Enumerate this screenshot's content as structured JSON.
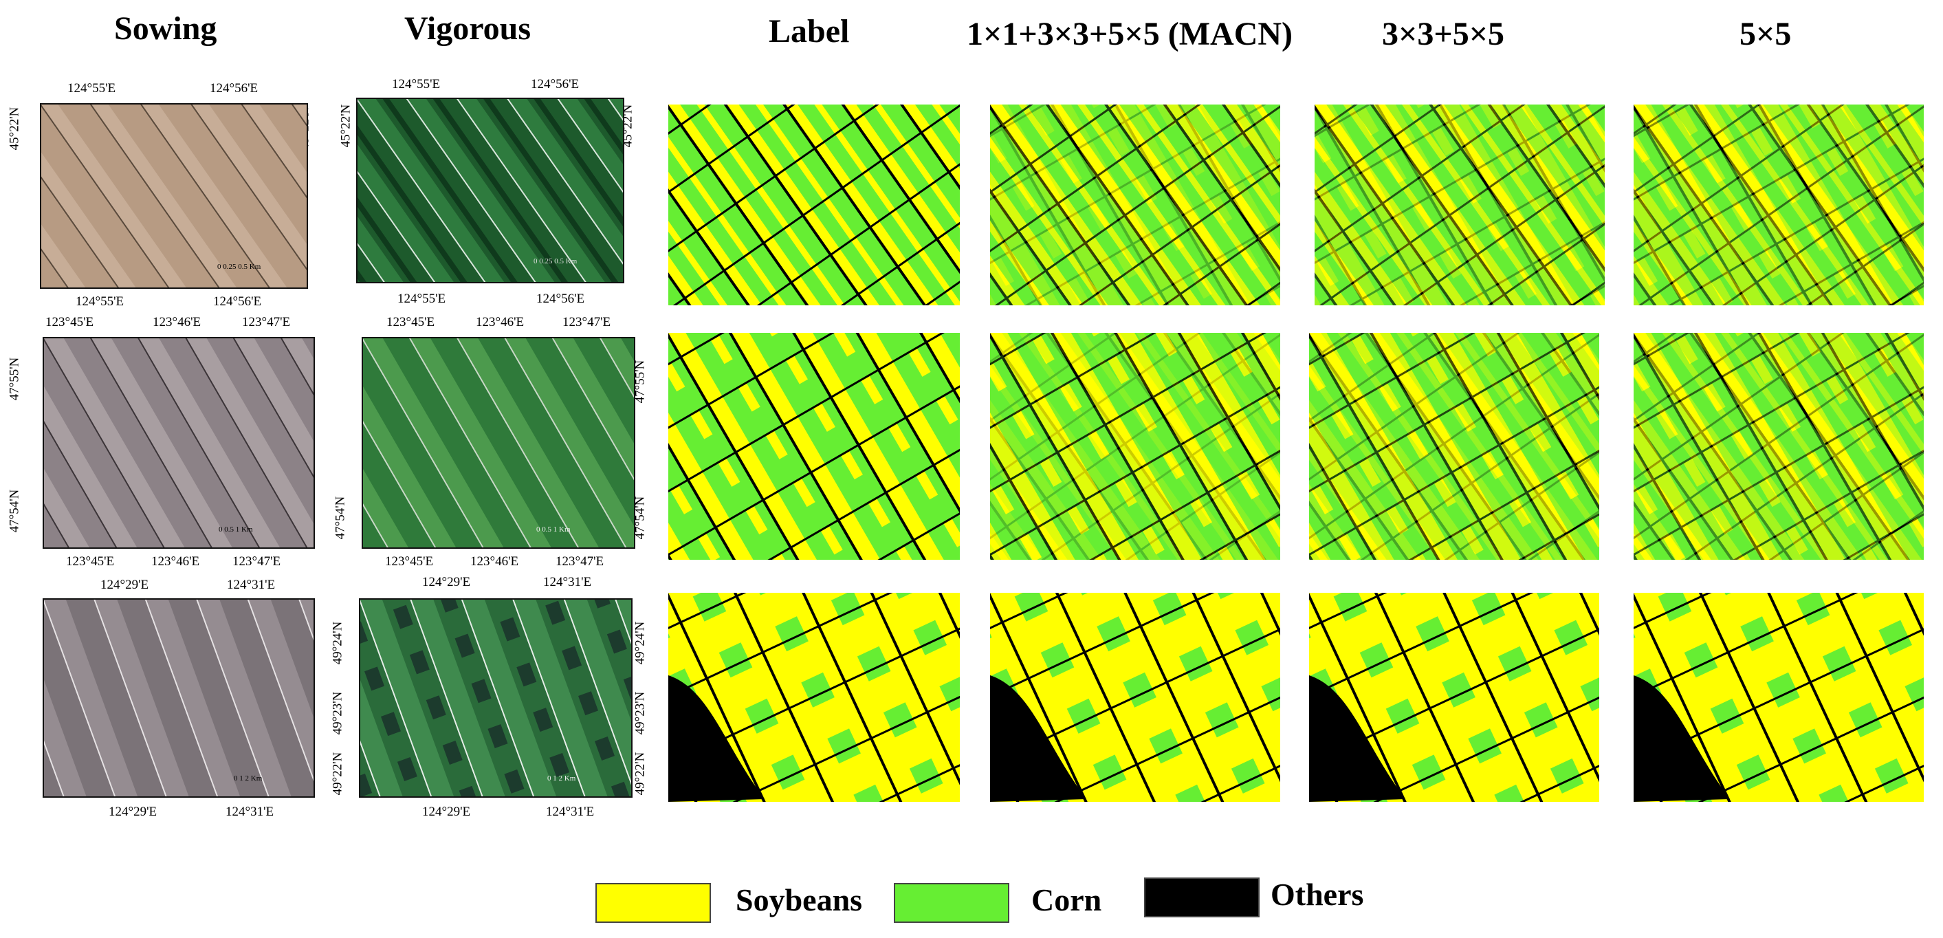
{
  "columns": {
    "sowing": "Sowing",
    "vigorous": "Vigorous",
    "label": "Label",
    "macn": "1×1+3×3+5×5 (MACN)",
    "k35": "3×3+5×5",
    "k5": "5×5"
  },
  "rows": [
    {
      "top_lon": [
        "124°55'E",
        "124°56'E"
      ],
      "bottom_lon": [
        "124°55'E",
        "124°56'E"
      ],
      "lat": [
        "45°22'N"
      ],
      "scale": "0  0.25  0.5 Km"
    },
    {
      "top_lon": [
        "123°45'E",
        "123°46'E",
        "123°47'E"
      ],
      "bottom_lon": [
        "123°45'E",
        "123°46'E",
        "123°47'E"
      ],
      "lat": [
        "47°55'N",
        "47°54'N"
      ],
      "scale": "0  0.5  1 Km"
    },
    {
      "top_lon": [
        "124°29'E",
        "124°31'E"
      ],
      "bottom_lon": [
        "124°29'E",
        "124°31'E"
      ],
      "lat": [
        "49°24'N",
        "49°23'N",
        "49°22'N"
      ],
      "scale": "0  1  2 Km"
    }
  ],
  "legend": [
    {
      "label": "Soybeans",
      "color": "#ffff00"
    },
    {
      "label": "Corn",
      "color": "#66ee33"
    },
    {
      "label": "Others",
      "color": "#000000"
    }
  ]
}
